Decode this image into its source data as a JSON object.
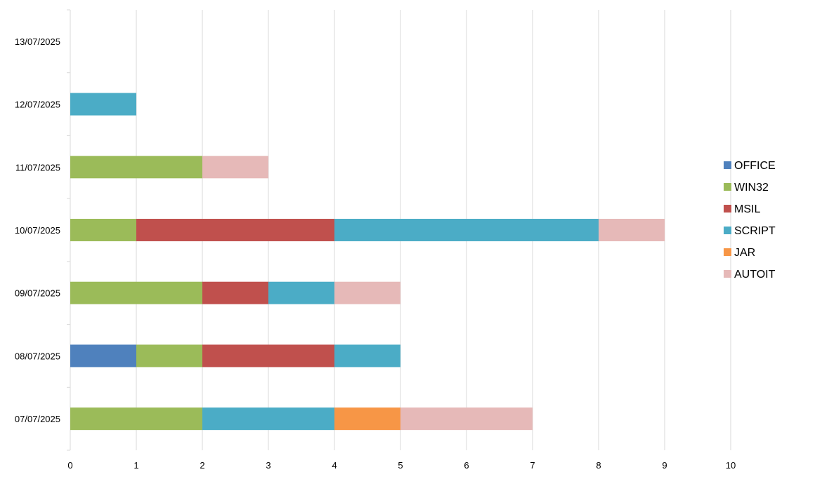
{
  "chart_data": {
    "type": "bar",
    "orientation": "horizontal",
    "stacked": true,
    "title": "",
    "xlabel": "",
    "ylabel": "",
    "xlim": [
      0,
      10
    ],
    "x_ticks": [
      "0",
      "1",
      "2",
      "3",
      "4",
      "5",
      "6",
      "7",
      "8",
      "9",
      "10"
    ],
    "grid": "vertical",
    "legend": "right",
    "categories": [
      "07/07/2025",
      "08/07/2025",
      "09/07/2025",
      "10/07/2025",
      "11/07/2025",
      "12/07/2025",
      "13/07/2025"
    ],
    "series": [
      {
        "name": "OFFICE",
        "color": "#4F81BD",
        "values": [
          0,
          1,
          0,
          0,
          0,
          0,
          0
        ]
      },
      {
        "name": "WIN32",
        "color": "#9BBB59",
        "values": [
          2,
          1,
          2,
          1,
          2,
          0,
          0
        ]
      },
      {
        "name": "MSIL",
        "color": "#C0504D",
        "values": [
          0,
          2,
          1,
          3,
          0,
          0,
          0
        ]
      },
      {
        "name": "SCRIPT",
        "color": "#4BACC6",
        "values": [
          2,
          1,
          1,
          4,
          0,
          1,
          0
        ]
      },
      {
        "name": "JAR",
        "color": "#F79646",
        "values": [
          1,
          0,
          0,
          0,
          0,
          0,
          0
        ]
      },
      {
        "name": "AUTOIT",
        "color": "#E6B9B8",
        "values": [
          2,
          0,
          1,
          1,
          1,
          0,
          0
        ]
      }
    ]
  }
}
